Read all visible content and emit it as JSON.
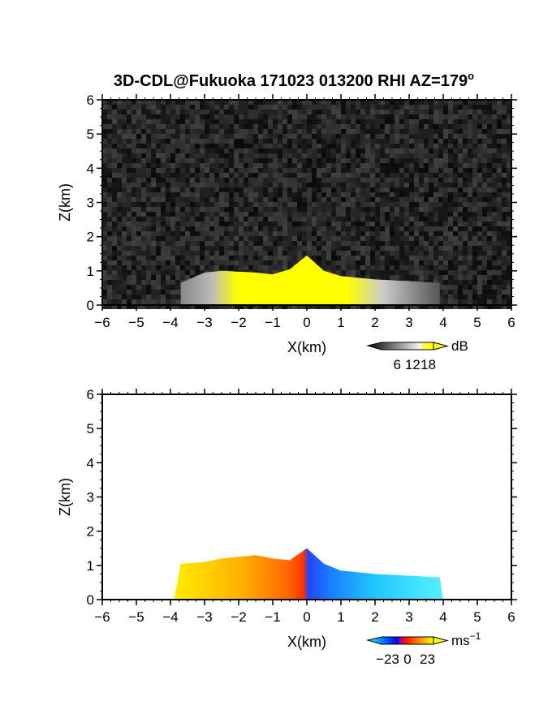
{
  "figure": {
    "title_main": "3D-CDL@Fukuoka 171023 013200 RHI AZ=179",
    "title_degree": "o"
  },
  "chart_data": [
    {
      "type": "heatmap",
      "quantity": "reflectivity",
      "xlabel": "X(km)",
      "ylabel": "Z(km)",
      "xlim": [
        -6,
        6
      ],
      "ylim": [
        0,
        6
      ],
      "xticks": [
        -6,
        -5,
        -4,
        -3,
        -2,
        -1,
        0,
        1,
        2,
        3,
        4,
        5,
        6
      ],
      "yticks": [
        0,
        1,
        2,
        3,
        4,
        5,
        6
      ],
      "grid": false,
      "background": "noise (dark gray)",
      "echo_extent_x": [
        -3.7,
        3.9
      ],
      "echo_top_by_x": [
        [
          -3.7,
          0.65
        ],
        [
          -3.0,
          0.95
        ],
        [
          -2.5,
          1.0
        ],
        [
          -1.5,
          0.95
        ],
        [
          -1.0,
          0.9
        ],
        [
          -0.5,
          1.05
        ],
        [
          0.0,
          1.45
        ],
        [
          0.5,
          1.0
        ],
        [
          1.0,
          0.85
        ],
        [
          2.0,
          0.75
        ],
        [
          3.0,
          0.7
        ],
        [
          3.9,
          0.65
        ]
      ],
      "colorbar": {
        "unit": "dB",
        "tick_labels": [
          "6",
          "12",
          "18"
        ],
        "tick_values": [
          6,
          12,
          18
        ],
        "range": [
          0,
          20
        ],
        "colors": [
          "#000000",
          "#ffffff",
          "#ffff00"
        ]
      }
    },
    {
      "type": "heatmap",
      "quantity": "doppler velocity",
      "xlabel": "X(km)",
      "ylabel": "Z(km)",
      "xlim": [
        -6,
        6
      ],
      "ylim": [
        0,
        6
      ],
      "xticks": [
        -6,
        -5,
        -4,
        -3,
        -2,
        -1,
        0,
        1,
        2,
        3,
        4,
        5,
        6
      ],
      "yticks": [
        0,
        1,
        2,
        3,
        4,
        5,
        6
      ],
      "grid": false,
      "background": "white",
      "echo_extent_x": [
        -3.9,
        4.0
      ],
      "echo_top_by_x": [
        [
          -3.7,
          1.05
        ],
        [
          -3.0,
          1.1
        ],
        [
          -2.5,
          1.2
        ],
        [
          -1.5,
          1.3
        ],
        [
          -1.0,
          1.2
        ],
        [
          -0.5,
          1.15
        ],
        [
          0.0,
          1.5
        ],
        [
          0.5,
          1.05
        ],
        [
          1.0,
          0.85
        ],
        [
          2.0,
          0.75
        ],
        [
          3.0,
          0.7
        ],
        [
          3.9,
          0.65
        ]
      ],
      "colorbar": {
        "unit": "ms",
        "unit_exponent": "−1",
        "tick_labels": [
          "−23",
          "0",
          "23"
        ],
        "tick_values": [
          -23,
          0,
          23
        ],
        "range": [
          -30,
          30
        ],
        "colors": [
          "#00ffff",
          "#0000ff",
          "#ff0000",
          "#ffff00"
        ]
      }
    }
  ]
}
